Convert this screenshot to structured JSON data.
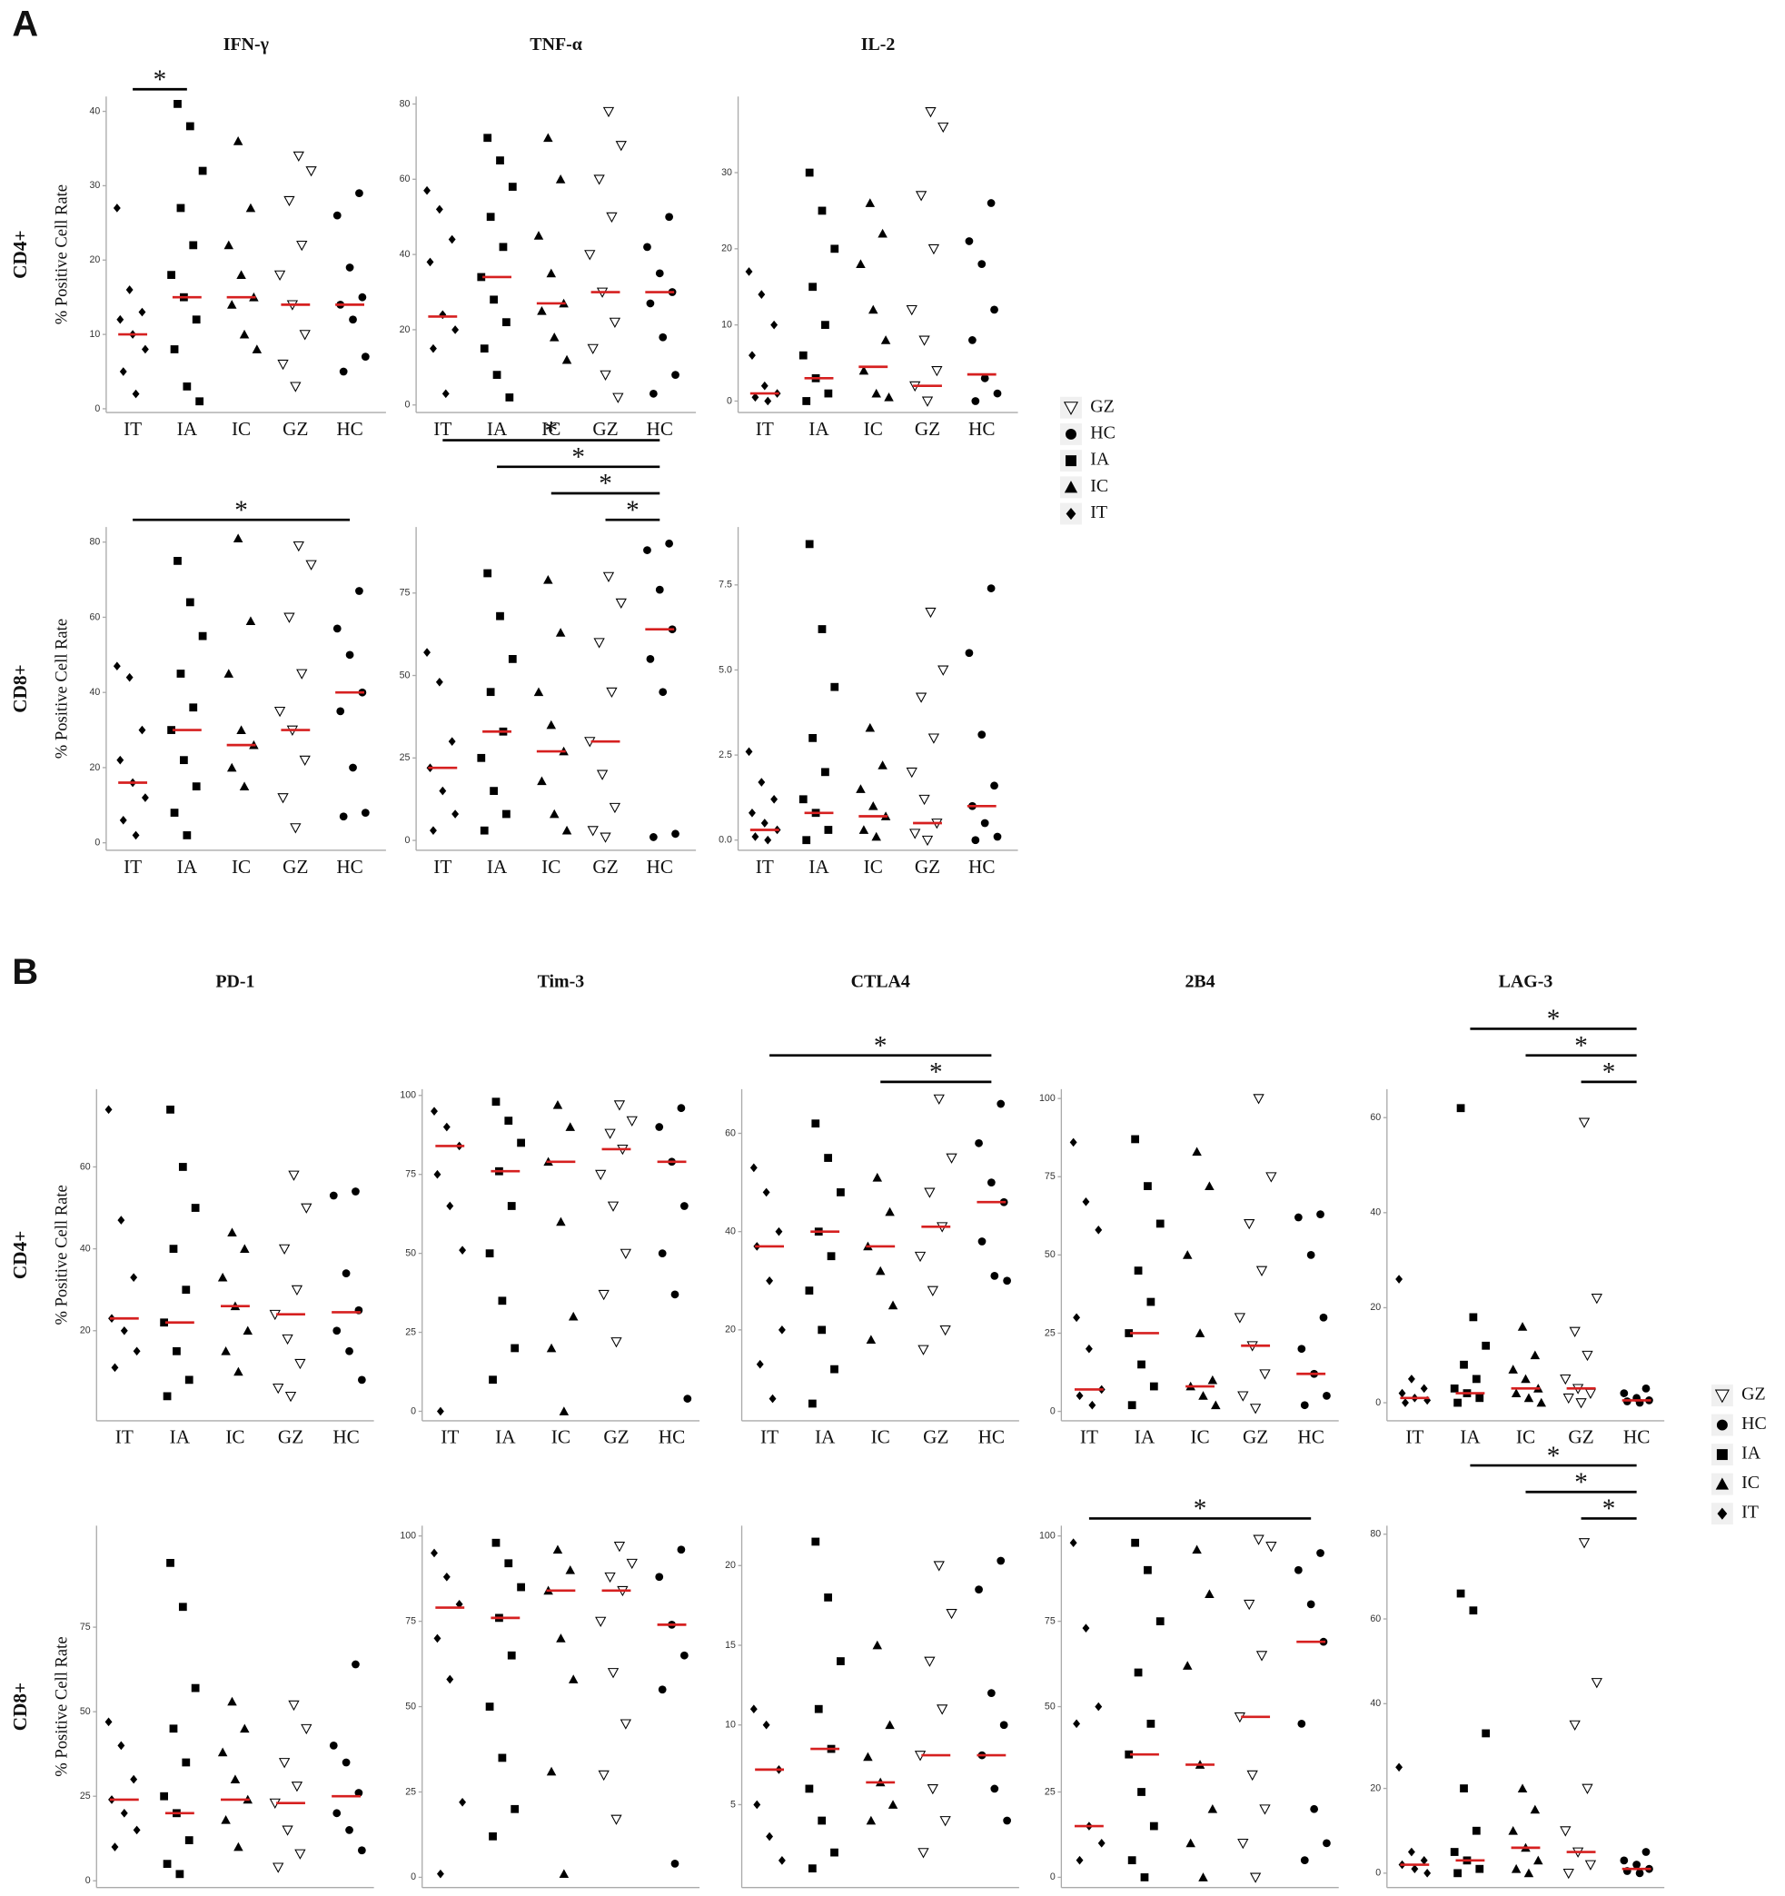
{
  "panels": [
    {
      "label": "A",
      "legend": [
        "GZ",
        "HC",
        "IA",
        "IC",
        "IT"
      ]
    },
    {
      "label": "B",
      "legend": [
        "GZ",
        "HC",
        "IA",
        "IC",
        "IT"
      ]
    }
  ],
  "markers": {
    "GZ": "open-triangle-down",
    "HC": "circle",
    "IA": "square",
    "IC": "triangle",
    "IT": "diamond"
  },
  "point_color": "#000000",
  "median_color": "#d62020",
  "chart_data": [
    {
      "type": "strip",
      "title": "IFN-γ",
      "row_label": "CD4+",
      "ylabel": "% Positive Cell Rate",
      "categories": [
        "IT",
        "IA",
        "IC",
        "GZ",
        "HC"
      ],
      "ylim": [
        -0.5,
        42
      ],
      "yticks": [
        0,
        10,
        20,
        30,
        40
      ],
      "points": [
        [
          27,
          16,
          13,
          12,
          10,
          8,
          5,
          2
        ],
        [
          41,
          38,
          32,
          27,
          22,
          18,
          15,
          12,
          8,
          3,
          1
        ],
        [
          36,
          27,
          22,
          18,
          15,
          14,
          10,
          8
        ],
        [
          34,
          32,
          28,
          22,
          18,
          14,
          10,
          6,
          3
        ],
        [
          29,
          26,
          19,
          15,
          14,
          12,
          7,
          5
        ]
      ],
      "medians": [
        10,
        15,
        15,
        14,
        14
      ],
      "significance": [
        {
          "groups": [
            "IT",
            "IA"
          ],
          "label": "*"
        }
      ]
    },
    {
      "type": "strip",
      "title": "TNF-α",
      "categories": [
        "IT",
        "IA",
        "IC",
        "GZ",
        "HC"
      ],
      "ylim": [
        -2,
        82
      ],
      "yticks": [
        0,
        20,
        40,
        60,
        80
      ],
      "points": [
        [
          57,
          52,
          44,
          38,
          24,
          20,
          15,
          3
        ],
        [
          71,
          65,
          58,
          50,
          42,
          34,
          28,
          22,
          15,
          8,
          2
        ],
        [
          71,
          60,
          45,
          35,
          27,
          25,
          18,
          12
        ],
        [
          78,
          69,
          60,
          50,
          40,
          30,
          22,
          15,
          8,
          2
        ],
        [
          50,
          42,
          35,
          30,
          27,
          18,
          8,
          3
        ]
      ],
      "medians": [
        23.5,
        34,
        27,
        30,
        30
      ]
    },
    {
      "type": "strip",
      "title": "IL-2",
      "categories": [
        "IT",
        "IA",
        "IC",
        "GZ",
        "HC"
      ],
      "ylim": [
        -1.5,
        40
      ],
      "yticks": [
        0,
        10,
        20,
        30
      ],
      "points": [
        [
          17,
          14,
          10,
          6,
          2,
          1,
          0.5,
          0
        ],
        [
          30,
          25,
          20,
          15,
          10,
          6,
          3,
          1,
          0
        ],
        [
          26,
          22,
          18,
          12,
          8,
          4,
          1,
          0.5
        ],
        [
          38,
          36,
          27,
          20,
          12,
          8,
          4,
          2,
          0
        ],
        [
          26,
          21,
          18,
          12,
          8,
          3,
          1,
          0
        ]
      ],
      "medians": [
        1,
        3,
        4.5,
        2,
        3.5
      ]
    },
    {
      "type": "strip",
      "row_label": "CD8+",
      "ylabel": "% Positive Cell Rate",
      "categories": [
        "IT",
        "IA",
        "IC",
        "GZ",
        "HC"
      ],
      "ylim": [
        -2,
        84
      ],
      "yticks": [
        0,
        20,
        40,
        60,
        80
      ],
      "points": [
        [
          47,
          44,
          30,
          22,
          16,
          12,
          6,
          2
        ],
        [
          75,
          64,
          55,
          45,
          36,
          30,
          22,
          15,
          8,
          2
        ],
        [
          81,
          59,
          45,
          30,
          26,
          20,
          15
        ],
        [
          79,
          74,
          60,
          45,
          35,
          30,
          22,
          12,
          4
        ],
        [
          67,
          57,
          50,
          40,
          35,
          20,
          8,
          7
        ]
      ],
      "medians": [
        16,
        30,
        26,
        30,
        40
      ],
      "significance": [
        {
          "groups": [
            "IT",
            "HC"
          ],
          "label": "*"
        }
      ]
    },
    {
      "type": "strip",
      "categories": [
        "IT",
        "IA",
        "IC",
        "GZ",
        "HC"
      ],
      "ylim": [
        -3,
        95
      ],
      "yticks": [
        0,
        25,
        50,
        75
      ],
      "points": [
        [
          57,
          48,
          30,
          22,
          15,
          8,
          3
        ],
        [
          81,
          68,
          55,
          45,
          33,
          25,
          15,
          8,
          3
        ],
        [
          79,
          63,
          45,
          35,
          27,
          18,
          8,
          3
        ],
        [
          80,
          72,
          60,
          45,
          30,
          20,
          10,
          3,
          1
        ],
        [
          90,
          88,
          76,
          64,
          55,
          45,
          2,
          1
        ]
      ],
      "medians": [
        22,
        33,
        27,
        30,
        64
      ],
      "significance": [
        {
          "groups": [
            "GZ",
            "HC"
          ],
          "label": "*"
        },
        {
          "groups": [
            "IC",
            "HC"
          ],
          "label": "*"
        },
        {
          "groups": [
            "IA",
            "HC"
          ],
          "label": "*"
        },
        {
          "groups": [
            "IT",
            "HC"
          ],
          "label": "*"
        }
      ]
    },
    {
      "type": "strip",
      "categories": [
        "IT",
        "IA",
        "IC",
        "GZ",
        "HC"
      ],
      "ylim": [
        -0.3,
        9.2
      ],
      "yticks": [
        {
          "value": 0,
          "label": "0.0"
        },
        2.5,
        {
          "value": 5,
          "label": "5.0"
        },
        7.5
      ],
      "points": [
        [
          2.6,
          1.7,
          1.2,
          0.8,
          0.5,
          0.3,
          0.1,
          0
        ],
        [
          8.7,
          6.2,
          4.5,
          3,
          2,
          1.2,
          0.8,
          0.3,
          0
        ],
        [
          3.3,
          2.2,
          1.5,
          1,
          0.7,
          0.3,
          0.1
        ],
        [
          6.7,
          5,
          4.2,
          3,
          2,
          1.2,
          0.5,
          0.2,
          0
        ],
        [
          7.4,
          5.5,
          3.1,
          1.6,
          1,
          0.5,
          0.1,
          0
        ]
      ],
      "medians": [
        0.3,
        0.8,
        0.7,
        0.5,
        1.0
      ]
    },
    {
      "type": "strip",
      "title": "PD-1",
      "row_label": "CD4+",
      "ylabel": "% Positive Cell Rate",
      "categories": [
        "IT",
        "IA",
        "IC",
        "GZ",
        "HC"
      ],
      "ylim": [
        -2,
        79
      ],
      "yticks": [
        20,
        40,
        60
      ],
      "points": [
        [
          74,
          47,
          33,
          23,
          20,
          15,
          11
        ],
        [
          74,
          60,
          50,
          40,
          30,
          22,
          15,
          8,
          4
        ],
        [
          44,
          40,
          33,
          26,
          20,
          15,
          10
        ],
        [
          58,
          50,
          40,
          30,
          24,
          18,
          12,
          6,
          4
        ],
        [
          54,
          53,
          34,
          25,
          20,
          15,
          8
        ]
      ],
      "medians": [
        23,
        22,
        26,
        24,
        24.5
      ]
    },
    {
      "type": "strip",
      "title": "Tim-3",
      "categories": [
        "IT",
        "IA",
        "IC",
        "GZ",
        "HC"
      ],
      "ylim": [
        -3,
        102
      ],
      "yticks": [
        0,
        25,
        50,
        75,
        100
      ],
      "points": [
        [
          95,
          90,
          84,
          75,
          65,
          51,
          0
        ],
        [
          98,
          92,
          85,
          76,
          65,
          50,
          35,
          20,
          10
        ],
        [
          97,
          90,
          79,
          60,
          30,
          20,
          0
        ],
        [
          97,
          92,
          88,
          83,
          75,
          65,
          50,
          37,
          22
        ],
        [
          96,
          90,
          79,
          65,
          50,
          37,
          4
        ]
      ],
      "medians": [
        84,
        76,
        79,
        83,
        79
      ]
    },
    {
      "type": "strip",
      "title": "CTLA4",
      "categories": [
        "IT",
        "IA",
        "IC",
        "GZ",
        "HC"
      ],
      "ylim": [
        1.5,
        69
      ],
      "yticks": [
        20,
        40,
        60
      ],
      "points": [
        [
          53,
          48,
          40,
          37,
          30,
          20,
          13,
          6
        ],
        [
          62,
          55,
          48,
          40,
          35,
          28,
          20,
          12,
          5
        ],
        [
          51,
          44,
          37,
          32,
          25,
          18
        ],
        [
          67,
          55,
          48,
          41,
          35,
          28,
          20,
          16
        ],
        [
          66,
          58,
          50,
          46,
          38,
          31,
          30
        ]
      ],
      "medians": [
        37,
        40,
        37,
        41,
        46
      ],
      "significance": [
        {
          "groups": [
            "IC",
            "HC"
          ],
          "label": "*"
        },
        {
          "groups": [
            "IT",
            "HC"
          ],
          "label": "*"
        }
      ]
    },
    {
      "type": "strip",
      "title": "2B4",
      "categories": [
        "IT",
        "IA",
        "IC",
        "GZ",
        "HC"
      ],
      "ylim": [
        -3,
        103
      ],
      "yticks": [
        0,
        25,
        50,
        75,
        100
      ],
      "points": [
        [
          86,
          67,
          58,
          30,
          20,
          7,
          5,
          2
        ],
        [
          87,
          72,
          60,
          45,
          35,
          25,
          15,
          8,
          2
        ],
        [
          83,
          72,
          50,
          25,
          10,
          8,
          5,
          2
        ],
        [
          100,
          75,
          60,
          45,
          30,
          21,
          12,
          5,
          1
        ],
        [
          63,
          62,
          50,
          30,
          20,
          12,
          5,
          2
        ]
      ],
      "medians": [
        7,
        25,
        8,
        21,
        12
      ]
    },
    {
      "type": "strip",
      "title": "LAG-3",
      "categories": [
        "IT",
        "IA",
        "IC",
        "GZ",
        "HC"
      ],
      "ylim": [
        -3.8,
        66
      ],
      "yticks": [
        0,
        20,
        40,
        60
      ],
      "points": [
        [
          26,
          5,
          3,
          2,
          1,
          0.5,
          0
        ],
        [
          62,
          18,
          12,
          8,
          5,
          3,
          2,
          1,
          0
        ],
        [
          16,
          10,
          7,
          5,
          3,
          2,
          1,
          0
        ],
        [
          59,
          22,
          15,
          10,
          5,
          3,
          2,
          1,
          0
        ],
        [
          3,
          2,
          1,
          0.5,
          0.3,
          0
        ]
      ],
      "medians": [
        1,
        2,
        3,
        3,
        0.5
      ],
      "significance": [
        {
          "groups": [
            "GZ",
            "HC"
          ],
          "label": "*"
        },
        {
          "groups": [
            "IC",
            "HC"
          ],
          "label": "*"
        },
        {
          "groups": [
            "IA",
            "HC"
          ],
          "label": "*"
        }
      ]
    },
    {
      "type": "strip",
      "row_label": "CD8+",
      "ylabel": "% Positive Cell Rate",
      "categories": [
        "IT",
        "IA",
        "IC",
        "GZ",
        "HC"
      ],
      "ylim": [
        -2,
        105
      ],
      "yticks": [
        0,
        25,
        50,
        75
      ],
      "points": [
        [
          47,
          40,
          30,
          24,
          20,
          15,
          10
        ],
        [
          94,
          81,
          57,
          45,
          35,
          25,
          20,
          12,
          5,
          2
        ],
        [
          53,
          45,
          38,
          30,
          24,
          18,
          10
        ],
        [
          52,
          45,
          35,
          28,
          23,
          15,
          8,
          4
        ],
        [
          64,
          40,
          35,
          26,
          20,
          15,
          9
        ]
      ],
      "medians": [
        24,
        20,
        24,
        23,
        25
      ]
    },
    {
      "type": "strip",
      "categories": [
        "IT",
        "IA",
        "IC",
        "GZ",
        "HC"
      ],
      "ylim": [
        -3,
        103
      ],
      "yticks": [
        0,
        25,
        50,
        75,
        100
      ],
      "points": [
        [
          95,
          88,
          80,
          70,
          58,
          22,
          1
        ],
        [
          98,
          92,
          85,
          76,
          65,
          50,
          35,
          20,
          12
        ],
        [
          96,
          90,
          84,
          70,
          58,
          31,
          1
        ],
        [
          97,
          92,
          88,
          84,
          75,
          60,
          45,
          30,
          17
        ],
        [
          96,
          88,
          74,
          65,
          55,
          4
        ]
      ],
      "medians": [
        79,
        76,
        84,
        84,
        74
      ]
    },
    {
      "type": "strip",
      "categories": [
        "IT",
        "IA",
        "IC",
        "GZ",
        "HC"
      ],
      "ylim": [
        -0.2,
        22.5
      ],
      "yticks": [
        5,
        10,
        15,
        20
      ],
      "points": [
        [
          11,
          10,
          7.2,
          5,
          3,
          1.5
        ],
        [
          21.5,
          18,
          14,
          11,
          8.5,
          6,
          4,
          2,
          1
        ],
        [
          15,
          10,
          8,
          6.4,
          5,
          4
        ],
        [
          20,
          17,
          14,
          11,
          8.1,
          6,
          4,
          2
        ],
        [
          20.3,
          18.5,
          12,
          10,
          8.1,
          6,
          4
        ]
      ],
      "medians": [
        7.2,
        8.5,
        6.4,
        8.1,
        8.1
      ]
    },
    {
      "type": "strip",
      "categories": [
        "IT",
        "IA",
        "IC",
        "GZ",
        "HC"
      ],
      "ylim": [
        -3,
        103
      ],
      "yticks": [
        0,
        25,
        50,
        75,
        100
      ],
      "points": [
        [
          98,
          73,
          50,
          45,
          15,
          10,
          5
        ],
        [
          98,
          90,
          75,
          60,
          45,
          36,
          25,
          15,
          5,
          0
        ],
        [
          96,
          83,
          62,
          33,
          20,
          10,
          0
        ],
        [
          99,
          97,
          80,
          65,
          47,
          30,
          20,
          10,
          0
        ],
        [
          95,
          90,
          80,
          69,
          45,
          20,
          10,
          5
        ]
      ],
      "medians": [
        15,
        36,
        33,
        47,
        69
      ],
      "significance": [
        {
          "groups": [
            "IT",
            "HC"
          ],
          "label": "*"
        }
      ]
    },
    {
      "type": "strip",
      "categories": [
        "IT",
        "IA",
        "IC",
        "GZ",
        "HC"
      ],
      "ylim": [
        -3.4,
        82
      ],
      "yticks": [
        0,
        20,
        40,
        60,
        80
      ],
      "points": [
        [
          25,
          5,
          3,
          2,
          1,
          0
        ],
        [
          66,
          62,
          33,
          20,
          10,
          5,
          3,
          1,
          0
        ],
        [
          20,
          15,
          10,
          6,
          3,
          1,
          0
        ],
        [
          78,
          45,
          35,
          20,
          10,
          5,
          2,
          0
        ],
        [
          5,
          3,
          2,
          1,
          0.5,
          0
        ]
      ],
      "medians": [
        2,
        3,
        6,
        5,
        1
      ],
      "significance": [
        {
          "groups": [
            "GZ",
            "HC"
          ],
          "label": "*"
        },
        {
          "groups": [
            "IC",
            "HC"
          ],
          "label": "*"
        },
        {
          "groups": [
            "IA",
            "HC"
          ],
          "label": "*"
        }
      ]
    }
  ]
}
